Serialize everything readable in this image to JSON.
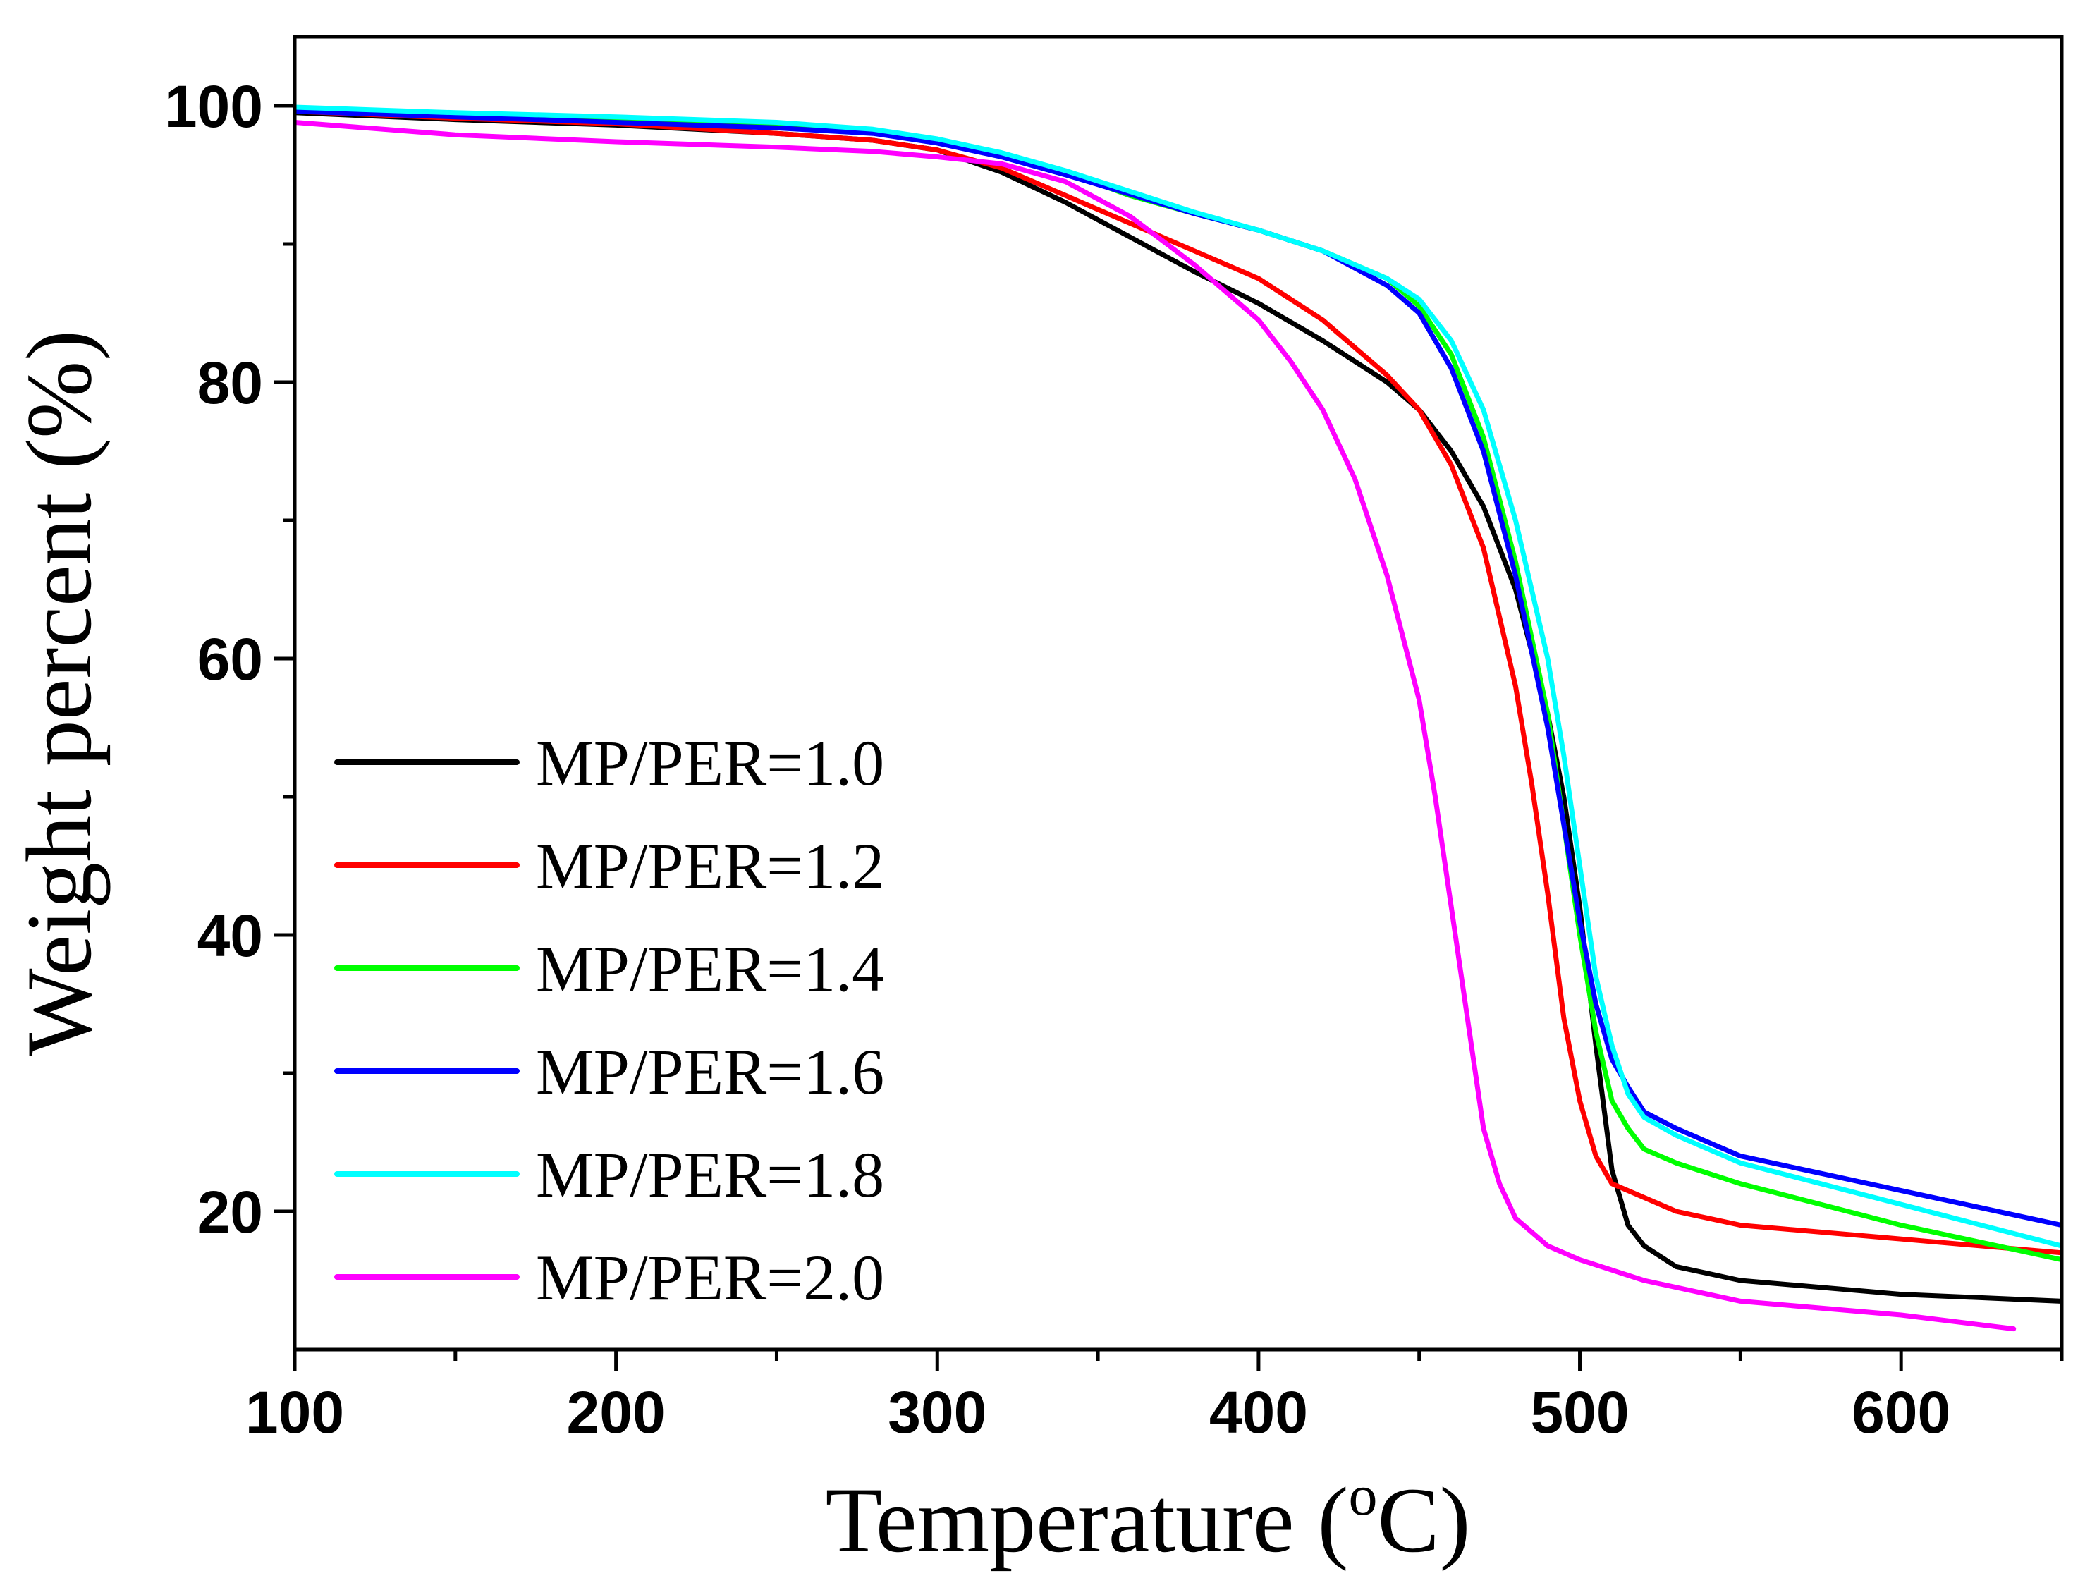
{
  "chart_data": {
    "type": "line",
    "title": "",
    "xlabel": "Temperature",
    "xlabel_unit_open": " (",
    "xlabel_unit_sup": "o",
    "xlabel_unit_close": "C)",
    "ylabel": "Weight percent (%)",
    "xlim": [
      100,
      650
    ],
    "ylim": [
      10,
      105
    ],
    "x_ticks": [
      100,
      200,
      300,
      400,
      500,
      600
    ],
    "x_minor_ticks": [
      150,
      250,
      350,
      450,
      550,
      650
    ],
    "y_ticks": [
      20,
      40,
      60,
      80,
      100
    ],
    "y_minor_ticks": [
      30,
      50,
      70,
      90
    ],
    "grid": false,
    "legend_position": "lower-left",
    "series": [
      {
        "name": "MP/PER=1.0",
        "color": "#000000",
        "x": [
          100,
          150,
          200,
          250,
          280,
          300,
          320,
          340,
          360,
          380,
          400,
          420,
          440,
          450,
          460,
          470,
          480,
          490,
          495,
          500,
          505,
          510,
          515,
          520,
          530,
          550,
          600,
          650
        ],
        "y": [
          99.5,
          99,
          98.6,
          98,
          97.5,
          96.8,
          95.2,
          93,
          90.5,
          88,
          85.7,
          83,
          80,
          78,
          75,
          71,
          65,
          56,
          50,
          42,
          32,
          23,
          19,
          17.5,
          16,
          15,
          14,
          13.5
        ]
      },
      {
        "name": "MP/PER=1.2",
        "color": "#ff0000",
        "x": [
          100,
          150,
          200,
          250,
          280,
          300,
          320,
          340,
          360,
          380,
          400,
          420,
          440,
          450,
          460,
          470,
          480,
          485,
          490,
          495,
          500,
          505,
          510,
          520,
          530,
          550,
          600,
          650
        ],
        "y": [
          99.6,
          99.1,
          98.7,
          98,
          97.5,
          96.8,
          95.5,
          93.5,
          91.5,
          89.5,
          87.5,
          84.5,
          80.5,
          78,
          74,
          68,
          58,
          51,
          43,
          34,
          28,
          24,
          22,
          21,
          20,
          19,
          18,
          17
        ]
      },
      {
        "name": "MP/PER=1.4",
        "color": "#00ff00",
        "x": [
          100,
          150,
          200,
          250,
          280,
          300,
          320,
          340,
          360,
          380,
          400,
          420,
          440,
          450,
          460,
          470,
          480,
          490,
          495,
          500,
          505,
          510,
          515,
          520,
          530,
          550,
          600,
          650
        ],
        "y": [
          99.8,
          99.4,
          99.1,
          98.7,
          98.2,
          97.5,
          96.5,
          95.2,
          93.5,
          92.2,
          91,
          89.5,
          87.5,
          85.5,
          82,
          76,
          67,
          56,
          48,
          40,
          33,
          28,
          26,
          24.5,
          23.5,
          22,
          19,
          16.5
        ]
      },
      {
        "name": "MP/PER=1.6",
        "color": "#0000ff",
        "x": [
          100,
          150,
          200,
          250,
          280,
          300,
          320,
          340,
          360,
          380,
          400,
          420,
          440,
          450,
          460,
          470,
          480,
          490,
          495,
          500,
          505,
          510,
          515,
          520,
          530,
          550,
          600,
          650
        ],
        "y": [
          99.6,
          99.2,
          98.8,
          98.4,
          98,
          97.3,
          96.3,
          95,
          93.6,
          92.2,
          91,
          89.5,
          87,
          85,
          81,
          75,
          66,
          55,
          48,
          41,
          35,
          31,
          29,
          27.2,
          26,
          24,
          21.5,
          19
        ]
      },
      {
        "name": "MP/PER=1.8",
        "color": "#00ffff",
        "x": [
          100,
          150,
          200,
          250,
          280,
          300,
          320,
          340,
          360,
          380,
          400,
          420,
          440,
          450,
          460,
          470,
          480,
          490,
          495,
          500,
          505,
          510,
          515,
          520,
          530,
          550,
          600,
          650
        ],
        "y": [
          99.9,
          99.5,
          99.2,
          98.8,
          98.3,
          97.6,
          96.6,
          95.3,
          93.8,
          92.3,
          91,
          89.5,
          87.5,
          86,
          83,
          78,
          70,
          60,
          53,
          45,
          37,
          32,
          28.5,
          26.8,
          25.5,
          23.5,
          20.5,
          17.5
        ]
      },
      {
        "name": "MP/PER=2.0",
        "color": "#ff00ff",
        "x": [
          100,
          150,
          200,
          250,
          280,
          300,
          320,
          340,
          360,
          380,
          400,
          410,
          420,
          430,
          440,
          450,
          455,
          460,
          465,
          470,
          475,
          480,
          490,
          500,
          520,
          550,
          600,
          635
        ],
        "y": [
          98.8,
          97.9,
          97.4,
          97,
          96.7,
          96.3,
          95.8,
          94.5,
          92,
          88.5,
          84.5,
          81.5,
          78,
          73,
          66,
          57,
          50,
          42,
          34,
          26,
          22,
          19.5,
          17.5,
          16.5,
          15,
          13.5,
          12.5,
          11.5
        ]
      }
    ]
  }
}
